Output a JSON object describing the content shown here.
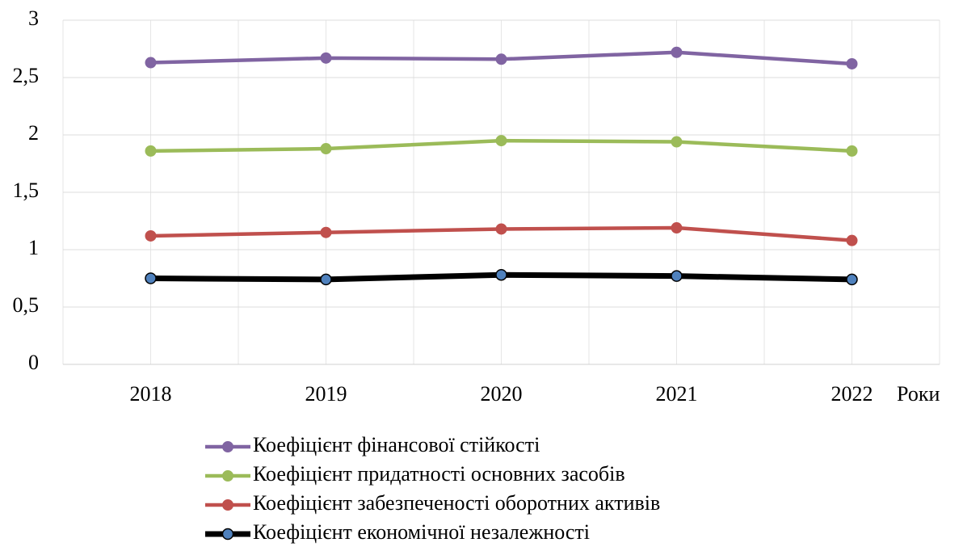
{
  "chart_data": {
    "type": "line",
    "x_label": "Роки",
    "categories": [
      "2018",
      "2019",
      "2020",
      "2021",
      "2022"
    ],
    "series": [
      {
        "name": "Коефіцієнт фінансової стійкості",
        "color": "#8064a2",
        "marker_fill": "#8064a2",
        "values": [
          2.63,
          2.67,
          2.66,
          2.72,
          2.62
        ]
      },
      {
        "name": "Коефіцієнт придатності основних засобів",
        "color": "#9bbb59",
        "marker_fill": "#9bbb59",
        "values": [
          1.86,
          1.88,
          1.95,
          1.94,
          1.86
        ]
      },
      {
        "name": "Коефіцієнт забезпеченості оборотних активів",
        "color": "#c0504d",
        "marker_fill": "#c0504d",
        "values": [
          1.12,
          1.15,
          1.18,
          1.19,
          1.08
        ]
      },
      {
        "name": "Коефіцієнт економічної незалежності",
        "color": "#000000",
        "marker_fill": "#4f81bd",
        "values": [
          0.75,
          0.74,
          0.78,
          0.77,
          0.74
        ]
      }
    ],
    "ylim": [
      0,
      3
    ],
    "yticks": [
      0,
      {
        "value": 0.5,
        "label": "0,5"
      },
      1,
      {
        "value": 1.5,
        "label": "1,5"
      },
      2,
      {
        "value": 2.5,
        "label": "2,5"
      },
      3
    ],
    "grid": true,
    "legend": "bottom"
  }
}
